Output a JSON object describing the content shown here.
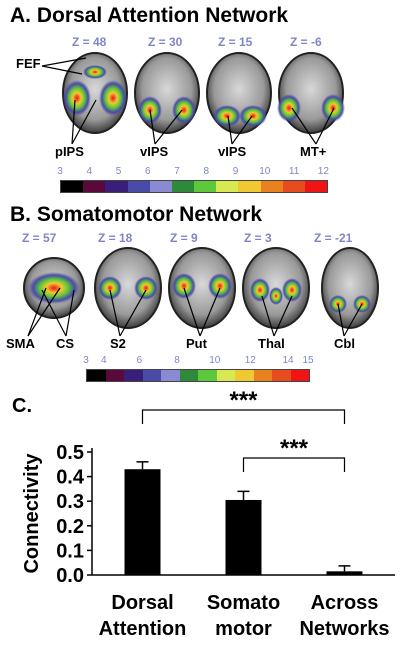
{
  "panel_a": {
    "title": "A. Dorsal Attention Network",
    "z_labels": [
      "Z = 48",
      "Z = 30",
      "Z = 15",
      "Z = -6"
    ],
    "region_labels": {
      "fef": "FEF",
      "pips": "pIPS",
      "vips1": "vIPS",
      "vips2": "vIPS",
      "mt": "MT+"
    },
    "colorbar_ticks": [
      "3",
      "4",
      "5",
      "6",
      "7",
      "8",
      "9",
      "10",
      "11",
      "12"
    ],
    "colorbar_colors": [
      "#000000",
      "#5a0a3a",
      "#3a1f7a",
      "#4a4aa8",
      "#8a8ad2",
      "#2e8a3a",
      "#5cc83a",
      "#d8e850",
      "#f0c832",
      "#e8821e",
      "#e84b1e",
      "#f01414"
    ]
  },
  "panel_b": {
    "title": "B. Somatomotor Network",
    "z_labels": [
      "Z = 57",
      "Z = 18",
      "Z = 9",
      "Z = 3",
      "Z = -21"
    ],
    "region_labels": {
      "sma": "SMA",
      "cs": "CS",
      "s2": "S2",
      "put": "Put",
      "thal": "Thal",
      "cbl": "Cbl"
    },
    "colorbar_ticks": [
      "3",
      "4",
      "6",
      "8",
      "10",
      "12",
      "14",
      "15"
    ],
    "colorbar_colors": [
      "#000000",
      "#5a0a3a",
      "#3a1f7a",
      "#4a4aa8",
      "#8a8ad2",
      "#2e8a3a",
      "#5cc83a",
      "#d8e850",
      "#f0c832",
      "#e8821e",
      "#e84b1e",
      "#f01414"
    ]
  },
  "panel_c": {
    "label": "C."
  },
  "chart_data": {
    "type": "bar",
    "categories": [
      [
        "Dorsal",
        "Attention"
      ],
      [
        "Somato",
        "motor"
      ],
      [
        "Across",
        "Networks"
      ]
    ],
    "values": [
      0.43,
      0.305,
      0.015
    ],
    "errors": [
      0.03,
      0.035,
      0.022
    ],
    "ylabel": "Connectivity",
    "ylim": [
      0,
      0.5
    ],
    "yticks": [
      "0.0",
      "0.1",
      "0.2",
      "0.3",
      "0.4",
      "0.5"
    ],
    "significance": [
      {
        "from": 0,
        "to": 2,
        "label": "***"
      },
      {
        "from": 1,
        "to": 2,
        "label": "***"
      }
    ],
    "bar_color": "#000000"
  }
}
